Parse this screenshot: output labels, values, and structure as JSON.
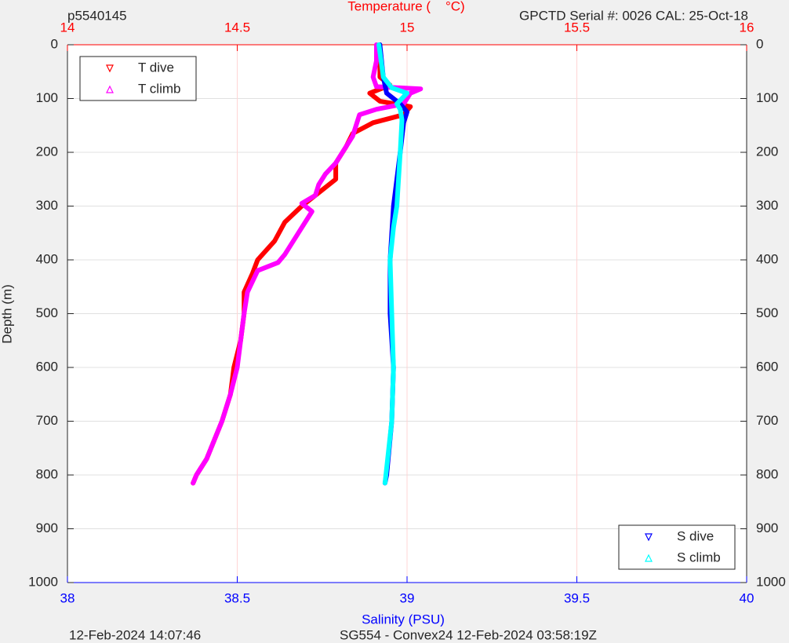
{
  "chart_data": {
    "type": "line",
    "label_left": "p5540145",
    "title": "Temperature (    °C)",
    "label_right": "GPCTD Serial #: 0026 CAL: 25-Oct-18",
    "ylabel": "Depth (m)",
    "xlabel": "Salinity (PSU)",
    "footer_left": "12-Feb-2024 14:07:46",
    "footer_center": "SG554 - Convex24 12-Feb-2024 03:58:19Z",
    "ylim": [
      0,
      1000
    ],
    "y_reversed": true,
    "yticks": [
      0,
      100,
      200,
      300,
      400,
      500,
      600,
      700,
      800,
      900,
      1000
    ],
    "xlim": [
      38,
      40
    ],
    "xticks": [
      38,
      38.5,
      39,
      39.5,
      40
    ],
    "x_color": "#0000ff",
    "x2lim": [
      14,
      16
    ],
    "x2ticks": [
      14,
      14.5,
      15,
      15.5,
      16
    ],
    "x2_color": "#ff0000",
    "grid": true,
    "series": [
      {
        "name": "T dive",
        "color": "#ff0000",
        "axis": "x2",
        "marker": "down",
        "legend": "top-left",
        "x": [
          14.92,
          14.92,
          14.95,
          14.89,
          14.92,
          15.01,
          14.99,
          14.9,
          14.84,
          14.82,
          14.79,
          14.79,
          14.75,
          14.69,
          14.64,
          14.61,
          14.56,
          14.545,
          14.52,
          14.52,
          14.51,
          14.49,
          14.48,
          14.455,
          14.41,
          14.38,
          14.37
        ],
        "y": [
          0,
          60,
          75,
          90,
          105,
          115,
          130,
          145,
          165,
          190,
          220,
          250,
          270,
          300,
          330,
          365,
          400,
          425,
          460,
          500,
          550,
          600,
          650,
          700,
          770,
          800,
          815
        ]
      },
      {
        "name": "T climb",
        "color": "#ff00ff",
        "axis": "x2",
        "marker": "up",
        "legend": "top-left",
        "x": [
          14.91,
          14.91,
          14.9,
          14.91,
          15.04,
          15.01,
          14.99,
          14.91,
          14.86,
          14.85,
          14.84,
          14.81,
          14.79,
          14.76,
          14.74,
          14.73,
          14.69,
          14.72,
          14.68,
          14.64,
          14.62,
          14.56,
          14.53,
          14.52,
          14.5,
          14.48,
          14.455,
          14.41,
          14.38,
          14.37
        ],
        "y": [
          0,
          30,
          60,
          78,
          82,
          90,
          110,
          120,
          130,
          150,
          170,
          200,
          220,
          240,
          260,
          280,
          295,
          310,
          350,
          390,
          405,
          420,
          460,
          500,
          600,
          650,
          700,
          770,
          800,
          815
        ]
      },
      {
        "name": "S dive",
        "color": "#0000ff",
        "axis": "x",
        "marker": "down",
        "legend": "bottom-right",
        "x": [
          38.92,
          38.93,
          38.94,
          38.98,
          39.0,
          38.99,
          38.98,
          38.96,
          38.95,
          38.95,
          38.96,
          38.955,
          38.94,
          38.935
        ],
        "y": [
          0,
          60,
          90,
          110,
          125,
          145,
          200,
          300,
          400,
          500,
          600,
          700,
          800,
          815
        ]
      },
      {
        "name": "S climb",
        "color": "#00ffff",
        "axis": "x",
        "marker": "up",
        "legend": "bottom-right",
        "x": [
          38.917,
          38.93,
          38.955,
          39.0,
          38.97,
          38.98,
          38.985,
          38.98,
          38.97,
          38.96,
          38.95,
          38.955,
          38.96,
          38.955,
          38.935
        ],
        "y": [
          0,
          60,
          80,
          90,
          110,
          120,
          140,
          200,
          300,
          340,
          400,
          500,
          600,
          700,
          815
        ]
      }
    ]
  }
}
